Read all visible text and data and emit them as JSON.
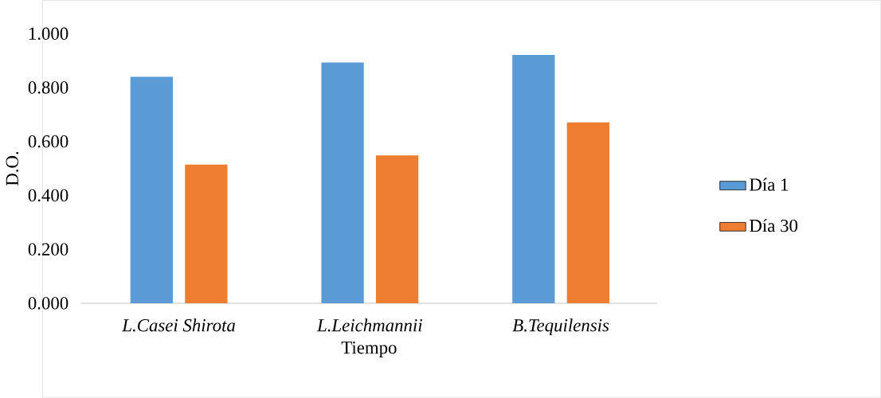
{
  "chart_data": {
    "type": "bar",
    "xlabel": "Tiempo",
    "ylabel": "D.O.",
    "categories": [
      "L.Casei Shirota",
      "L.Leichmannii",
      "B.Tequilensis"
    ],
    "series": [
      {
        "name": "Día 1",
        "color": "#5b9bd5",
        "values": [
          0.84,
          0.893,
          0.921
        ]
      },
      {
        "name": "Día 30",
        "color": "#ed7d31",
        "values": [
          0.514,
          0.548,
          0.671
        ]
      }
    ],
    "ylim": [
      0,
      1
    ],
    "yticks": [
      {
        "value": 0,
        "label": "0.000"
      },
      {
        "value": 0.2,
        "label": "0.200"
      },
      {
        "value": 0.4,
        "label": "0.400"
      },
      {
        "value": 0.6,
        "label": "0.600"
      },
      {
        "value": 0.8,
        "label": "0.800"
      },
      {
        "value": 1,
        "label": "1.000"
      }
    ],
    "grid": false,
    "legend": "right"
  }
}
